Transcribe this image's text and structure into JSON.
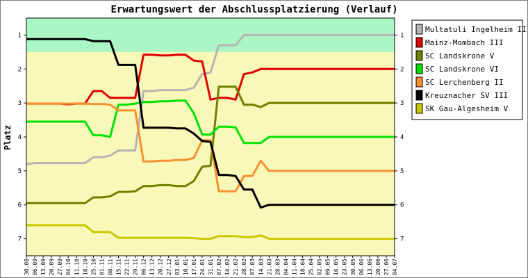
{
  "chart_data": {
    "type": "line",
    "title": "Erwartungswert der Abschlussplatzierung (Verlauf)",
    "xlabel": "",
    "ylabel": "Platz",
    "ylim": [
      0.5,
      7.5
    ],
    "y_ticks": [
      "1",
      "2",
      "3",
      "4",
      "5",
      "6",
      "7"
    ],
    "zones": [
      {
        "from": 0.5,
        "to": 1.5,
        "color": "#aaf7c5"
      },
      {
        "from": 1.5,
        "to": 7.5,
        "color": "#f8f8b8"
      }
    ],
    "categories": [
      "30.08",
      "06.09",
      "13.09",
      "20.09",
      "27.09",
      "04.10",
      "11.10",
      "18.10",
      "25.10",
      "01.11",
      "08.11",
      "15.11",
      "22.11",
      "29.11",
      "06.12",
      "13.12",
      "20.12",
      "27.12",
      "03.01",
      "10.01",
      "17.01",
      "24.01",
      "31.01",
      "07.02",
      "14.02",
      "21.02",
      "28.02",
      "07.03",
      "14.03",
      "21.03",
      "28.03",
      "04.04",
      "11.04",
      "18.04",
      "25.04",
      "02.05",
      "09.05",
      "16.05",
      "23.05",
      "30.05",
      "06.06",
      "13.06",
      "20.06",
      "27.06",
      "04.07"
    ],
    "legend_position": "right",
    "series": [
      {
        "name": "Multatuli Ingelheim III",
        "color": "#b4b4b4",
        "values": [
          4.8,
          4.77,
          4.77,
          4.77,
          4.77,
          4.77,
          4.77,
          4.77,
          4.6,
          4.6,
          4.55,
          4.4,
          4.4,
          4.4,
          2.65,
          2.65,
          2.62,
          2.62,
          2.62,
          2.62,
          2.55,
          2.15,
          2.1,
          1.3,
          1.3,
          1.3,
          1.0,
          1.0,
          1.0,
          1.0,
          1.0,
          1.0,
          1.0,
          1.0,
          1.0,
          1.0,
          1.0,
          1.0,
          1.0,
          1.0,
          1.0,
          1.0,
          1.0,
          1.0,
          1.0
        ]
      },
      {
        "name": "Mainz-Mombach III",
        "color": "#e00000",
        "values": [
          3.02,
          3.02,
          3.02,
          3.02,
          3.02,
          3.04,
          3.02,
          3.02,
          2.65,
          2.65,
          2.85,
          2.85,
          2.85,
          2.85,
          1.58,
          1.58,
          1.6,
          1.6,
          1.58,
          1.58,
          1.75,
          1.78,
          2.9,
          2.85,
          2.85,
          2.9,
          2.15,
          2.1,
          2.0,
          2.0,
          2.0,
          2.0,
          2.0,
          2.0,
          2.0,
          2.0,
          2.0,
          2.0,
          2.0,
          2.0,
          2.0,
          2.0,
          2.0,
          2.0,
          2.0
        ]
      },
      {
        "name": "SC Landskrone V",
        "color": "#708000",
        "values": [
          5.95,
          5.95,
          5.95,
          5.95,
          5.95,
          5.95,
          5.95,
          5.95,
          5.78,
          5.78,
          5.75,
          5.62,
          5.62,
          5.6,
          5.45,
          5.45,
          5.42,
          5.42,
          5.45,
          5.45,
          5.3,
          4.88,
          4.85,
          2.52,
          2.52,
          2.52,
          3.05,
          3.05,
          3.12,
          3.0,
          3.0,
          3.0,
          3.0,
          3.0,
          3.0,
          3.0,
          3.0,
          3.0,
          3.0,
          3.0,
          3.0,
          3.0,
          3.0,
          3.0,
          3.0
        ]
      },
      {
        "name": "SC Landskrone VI",
        "color": "#00e000",
        "values": [
          3.55,
          3.55,
          3.55,
          3.55,
          3.55,
          3.55,
          3.55,
          3.55,
          3.95,
          3.95,
          4.0,
          3.05,
          3.05,
          3.02,
          2.97,
          2.97,
          2.95,
          2.95,
          2.93,
          2.93,
          3.3,
          3.93,
          3.93,
          3.7,
          3.7,
          3.72,
          4.18,
          4.18,
          4.18,
          4.0,
          4.0,
          4.0,
          4.0,
          4.0,
          4.0,
          4.0,
          4.0,
          4.0,
          4.0,
          4.0,
          4.0,
          4.0,
          4.0,
          4.0,
          4.0
        ]
      },
      {
        "name": "SC Lerchenberg II",
        "color": "#f89030",
        "values": [
          3.02,
          3.02,
          3.02,
          3.02,
          3.02,
          3.02,
          3.02,
          3.02,
          3.03,
          3.03,
          3.05,
          3.22,
          3.22,
          3.22,
          4.72,
          4.72,
          4.7,
          4.7,
          4.68,
          4.68,
          4.62,
          4.1,
          4.1,
          5.6,
          5.6,
          5.6,
          5.15,
          5.15,
          4.7,
          5.0,
          5.0,
          5.0,
          5.0,
          5.0,
          5.0,
          5.0,
          5.0,
          5.0,
          5.0,
          5.0,
          5.0,
          5.0,
          5.0,
          5.0,
          5.0
        ]
      },
      {
        "name": "Kreuznacher SV III",
        "color": "#000000",
        "values": [
          1.12,
          1.12,
          1.12,
          1.12,
          1.12,
          1.12,
          1.12,
          1.12,
          1.18,
          1.18,
          1.18,
          1.88,
          1.88,
          1.88,
          3.73,
          3.73,
          3.73,
          3.73,
          3.75,
          3.75,
          3.9,
          4.12,
          4.15,
          5.12,
          5.12,
          5.15,
          5.55,
          5.55,
          6.08,
          6.0,
          6.0,
          6.0,
          6.0,
          6.0,
          6.0,
          6.0,
          6.0,
          6.0,
          6.0,
          6.0,
          6.0,
          6.0,
          6.0,
          6.0,
          6.0
        ]
      },
      {
        "name": "SK Gau-Algesheim V",
        "color": "#c8c800",
        "values": [
          6.6,
          6.6,
          6.6,
          6.6,
          6.6,
          6.6,
          6.6,
          6.6,
          6.8,
          6.8,
          6.8,
          6.97,
          6.97,
          6.97,
          6.97,
          6.97,
          6.97,
          6.97,
          6.97,
          6.97,
          6.98,
          7.0,
          7.0,
          6.92,
          6.92,
          6.92,
          6.95,
          6.95,
          6.9,
          7.0,
          7.0,
          7.0,
          7.0,
          7.0,
          7.0,
          7.0,
          7.0,
          7.0,
          7.0,
          7.0,
          7.0,
          7.0,
          7.0,
          7.0,
          7.0
        ]
      }
    ]
  }
}
